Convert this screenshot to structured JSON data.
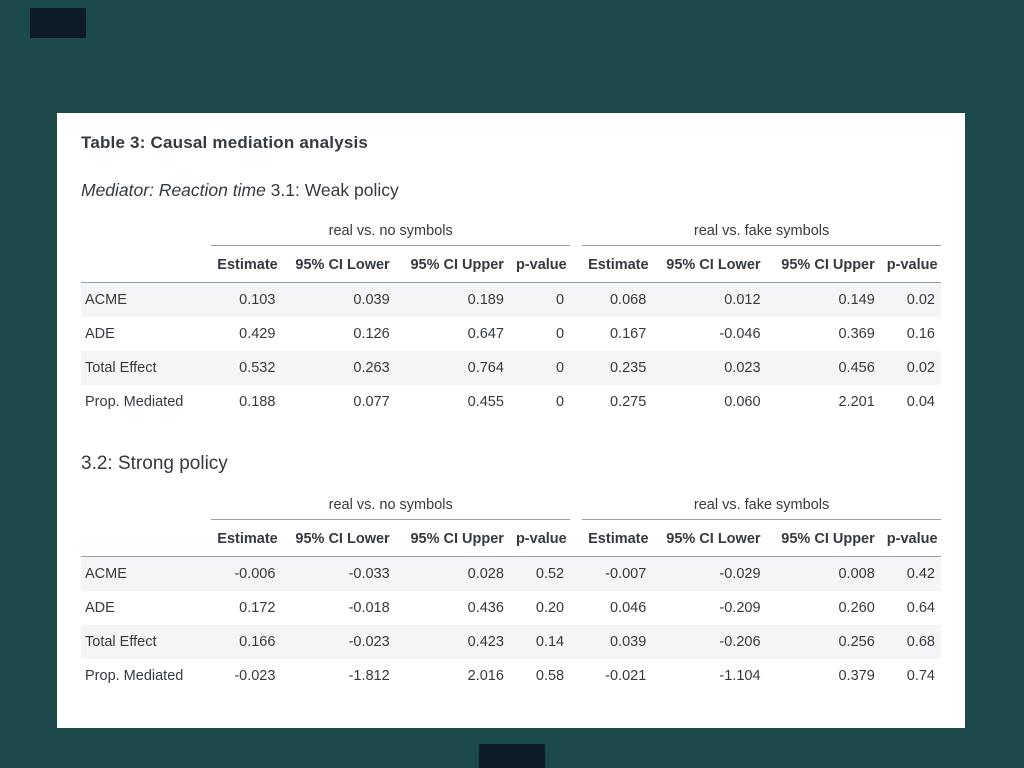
{
  "card": {
    "title": "Table 3: Causal mediation analysis",
    "section1": {
      "mediator_label": "Mediator: Reaction time ",
      "policy_label": "3.1: Weak policy"
    },
    "section2_title": "3.2: Strong policy"
  },
  "colors": {
    "background": "#1c4a4b",
    "card": "#ffffff",
    "text": "#343a40",
    "stripe": "#f4f5f6",
    "rule": "#97a0a8",
    "dark_block": "#0c1b27"
  },
  "chart_data": [
    {
      "type": "table",
      "title": "3.1: Weak policy",
      "column_groups": [
        "real vs. no symbols",
        "real vs. fake symbols"
      ],
      "columns": [
        "Estimate",
        "95% CI Lower",
        "95% CI Upper",
        "p-value",
        "Estimate",
        "95% CI Lower",
        "95% CI Upper",
        "p-value"
      ],
      "rows": [
        {
          "label": "ACME",
          "values": [
            "0.103",
            "0.039",
            "0.189",
            "0",
            "0.068",
            "0.012",
            "0.149",
            "0.02"
          ]
        },
        {
          "label": "ADE",
          "values": [
            "0.429",
            "0.126",
            "0.647",
            "0",
            "0.167",
            "-0.046",
            "0.369",
            "0.16"
          ]
        },
        {
          "label": "Total Effect",
          "values": [
            "0.532",
            "0.263",
            "0.764",
            "0",
            "0.235",
            "0.023",
            "0.456",
            "0.02"
          ]
        },
        {
          "label": "Prop. Mediated",
          "values": [
            "0.188",
            "0.077",
            "0.455",
            "0",
            "0.275",
            "0.060",
            "2.201",
            "0.04"
          ]
        }
      ]
    },
    {
      "type": "table",
      "title": "3.2: Strong policy",
      "column_groups": [
        "real vs. no symbols",
        "real vs. fake symbols"
      ],
      "columns": [
        "Estimate",
        "95% CI Lower",
        "95% CI Upper",
        "p-value",
        "Estimate",
        "95% CI Lower",
        "95% CI Upper",
        "p-value"
      ],
      "rows": [
        {
          "label": "ACME",
          "values": [
            "-0.006",
            "-0.033",
            "0.028",
            "0.52",
            "-0.007",
            "-0.029",
            "0.008",
            "0.42"
          ]
        },
        {
          "label": "ADE",
          "values": [
            "0.172",
            "-0.018",
            "0.436",
            "0.20",
            "0.046",
            "-0.209",
            "0.260",
            "0.64"
          ]
        },
        {
          "label": "Total Effect",
          "values": [
            "0.166",
            "-0.023",
            "0.423",
            "0.14",
            "0.039",
            "-0.206",
            "0.256",
            "0.68"
          ]
        },
        {
          "label": "Prop. Mediated",
          "values": [
            "-0.023",
            "-1.812",
            "2.016",
            "0.58",
            "-0.021",
            "-1.104",
            "0.379",
            "0.74"
          ]
        }
      ]
    }
  ]
}
